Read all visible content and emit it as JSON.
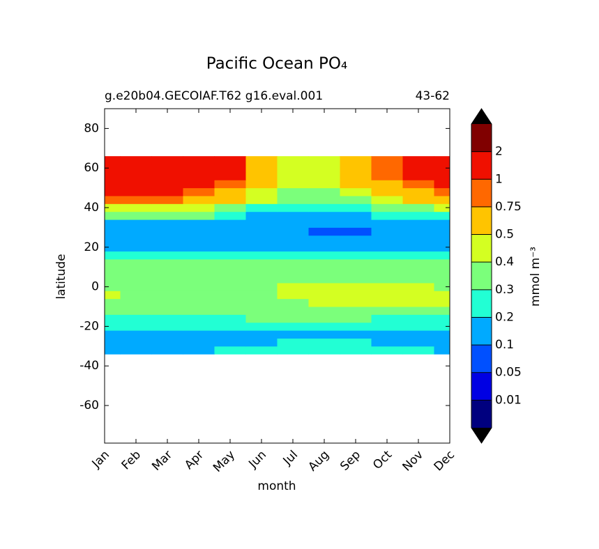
{
  "chart_data": {
    "type": "contour",
    "title": "Pacific Ocean PO₄",
    "subtitle_left": "g.e20b04.GECOIAF.T62 g16.eval.001",
    "subtitle_right": "43-62",
    "x_label": "month",
    "y_label": "latitude",
    "colorbar_label": "mmol m⁻³",
    "categories": [
      "Jan",
      "Feb",
      "Mar",
      "Apr",
      "May",
      "Jun",
      "Jul",
      "Aug",
      "Sep",
      "Oct",
      "Nov",
      "Dec"
    ],
    "ylim": [
      -79,
      90
    ],
    "yticks": [
      -60,
      -40,
      -20,
      0,
      20,
      40,
      60,
      80
    ],
    "y": [
      -32,
      -28,
      -24,
      -20,
      -16,
      -12,
      -8,
      -4,
      0,
      4,
      8,
      12,
      16,
      20,
      24,
      28,
      32,
      36,
      40,
      44,
      48,
      52,
      56,
      60,
      64
    ],
    "z": [
      [
        0.15,
        0.15,
        0.15,
        0.18,
        0.22,
        0.22,
        0.25,
        0.28,
        0.28,
        0.22,
        0.2,
        0.18
      ],
      [
        0.15,
        0.15,
        0.15,
        0.15,
        0.15,
        0.18,
        0.22,
        0.22,
        0.22,
        0.18,
        0.15,
        0.15
      ],
      [
        0.15,
        0.15,
        0.15,
        0.15,
        0.15,
        0.15,
        0.15,
        0.15,
        0.15,
        0.15,
        0.15,
        0.15
      ],
      [
        0.22,
        0.22,
        0.22,
        0.22,
        0.22,
        0.25,
        0.25,
        0.25,
        0.25,
        0.22,
        0.22,
        0.22
      ],
      [
        0.25,
        0.25,
        0.25,
        0.25,
        0.28,
        0.32,
        0.32,
        0.32,
        0.3,
        0.28,
        0.28,
        0.28
      ],
      [
        0.32,
        0.32,
        0.32,
        0.32,
        0.32,
        0.32,
        0.35,
        0.35,
        0.35,
        0.35,
        0.35,
        0.35
      ],
      [
        0.35,
        0.35,
        0.35,
        0.35,
        0.35,
        0.35,
        0.38,
        0.42,
        0.42,
        0.42,
        0.4,
        0.4
      ],
      [
        0.42,
        0.35,
        0.35,
        0.35,
        0.35,
        0.35,
        0.42,
        0.45,
        0.45,
        0.45,
        0.42,
        0.4
      ],
      [
        0.35,
        0.35,
        0.35,
        0.35,
        0.35,
        0.35,
        0.4,
        0.42,
        0.42,
        0.42,
        0.4,
        0.38
      ],
      [
        0.35,
        0.35,
        0.35,
        0.35,
        0.35,
        0.35,
        0.35,
        0.35,
        0.35,
        0.35,
        0.35,
        0.35
      ],
      [
        0.35,
        0.35,
        0.35,
        0.35,
        0.35,
        0.35,
        0.35,
        0.35,
        0.35,
        0.35,
        0.35,
        0.35
      ],
      [
        0.32,
        0.32,
        0.32,
        0.32,
        0.32,
        0.32,
        0.32,
        0.32,
        0.32,
        0.32,
        0.32,
        0.32
      ],
      [
        0.25,
        0.25,
        0.25,
        0.25,
        0.25,
        0.25,
        0.22,
        0.22,
        0.22,
        0.22,
        0.25,
        0.25
      ],
      [
        0.18,
        0.18,
        0.18,
        0.18,
        0.18,
        0.18,
        0.18,
        0.18,
        0.18,
        0.18,
        0.18,
        0.18
      ],
      [
        0.15,
        0.15,
        0.15,
        0.15,
        0.15,
        0.15,
        0.15,
        0.15,
        0.15,
        0.15,
        0.15,
        0.15
      ],
      [
        0.15,
        0.15,
        0.15,
        0.15,
        0.15,
        0.14,
        0.12,
        0.09,
        0.09,
        0.13,
        0.15,
        0.15
      ],
      [
        0.18,
        0.18,
        0.18,
        0.18,
        0.17,
        0.15,
        0.12,
        0.12,
        0.12,
        0.15,
        0.17,
        0.18
      ],
      [
        0.32,
        0.3,
        0.3,
        0.3,
        0.25,
        0.18,
        0.15,
        0.15,
        0.15,
        0.2,
        0.25,
        0.28
      ],
      [
        0.45,
        0.45,
        0.45,
        0.42,
        0.35,
        0.28,
        0.25,
        0.25,
        0.25,
        0.32,
        0.38,
        0.42
      ],
      [
        0.8,
        0.8,
        0.8,
        0.7,
        0.55,
        0.4,
        0.35,
        0.35,
        0.38,
        0.45,
        0.52,
        0.6
      ],
      [
        1.05,
        1.05,
        1.05,
        0.95,
        0.7,
        0.45,
        0.38,
        0.38,
        0.42,
        0.55,
        0.7,
        0.85
      ],
      [
        1.2,
        1.2,
        1.2,
        1.2,
        0.9,
        0.5,
        0.45,
        0.45,
        0.5,
        0.7,
        0.9,
        1.1
      ],
      [
        1.3,
        1.3,
        1.3,
        1.3,
        1.0,
        0.55,
        0.45,
        0.45,
        0.55,
        0.8,
        1.1,
        1.2
      ],
      [
        1.3,
        1.4,
        1.4,
        1.3,
        1.1,
        0.6,
        0.45,
        0.45,
        0.6,
        0.9,
        1.2,
        1.3
      ],
      [
        1.3,
        1.4,
        1.4,
        1.3,
        1.1,
        0.6,
        0.45,
        0.45,
        0.55,
        0.8,
        1.1,
        1.2
      ]
    ],
    "levels": [
      0.01,
      0.05,
      0.1,
      0.2,
      0.3,
      0.4,
      0.5,
      0.75,
      1,
      2
    ],
    "colors": [
      "#00007f",
      "#0000e3",
      "#0050ff",
      "#00aaff",
      "#22ffd4",
      "#7bff7b",
      "#d4ff22",
      "#ffc400",
      "#ff6800",
      "#f01000",
      "#800000"
    ],
    "extend_color": "#000000"
  }
}
